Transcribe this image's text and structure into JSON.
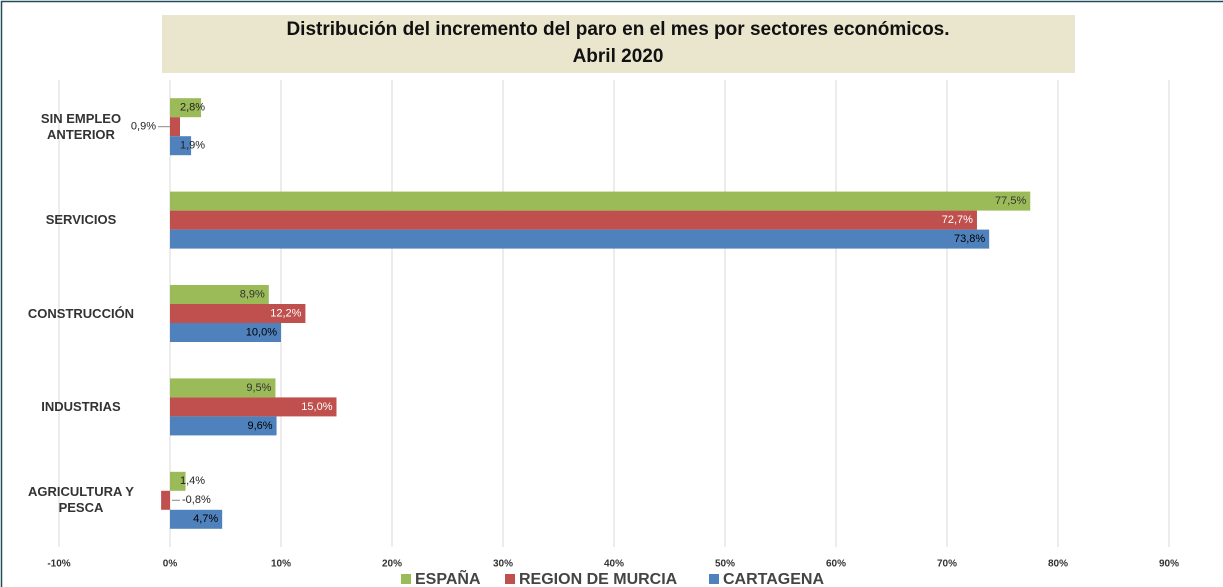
{
  "chart_data": {
    "type": "hbar",
    "title": [
      "Distribución del incremento del paro en el mes por sectores económicos.",
      "Abril 2020"
    ],
    "categories": [
      "SIN EMPLEO ANTERIOR",
      "SERVICIOS",
      "CONSTRUCCIÓN",
      "INDUSTRIAS",
      "AGRICULTURA Y PESCA"
    ],
    "series": [
      {
        "name": "ESPAÑA",
        "color": "#9bbb59",
        "values": [
          2.8,
          77.5,
          8.9,
          9.5,
          1.4
        ],
        "value_labels": [
          "2,8%",
          "77,5%",
          "8,9%",
          "9,5%",
          "1,4%"
        ]
      },
      {
        "name": "REGION DE MURCIA",
        "color": "#c0504d",
        "values": [
          0.9,
          72.7,
          12.2,
          15.0,
          -0.8
        ],
        "value_labels": [
          "0,9%",
          "72,7%",
          "12,2%",
          "15,0%",
          "-0,8%"
        ]
      },
      {
        "name": "CARTAGENA",
        "color": "#4f81bd",
        "values": [
          1.9,
          73.8,
          10.0,
          9.6,
          4.7
        ],
        "value_labels": [
          "1,9%",
          "73,8%",
          "10,0%",
          "9,6%",
          "4,7%"
        ]
      }
    ],
    "xlim": [
      -10,
      90
    ],
    "xticks": [
      {
        "value": -10,
        "label": "-10%"
      },
      {
        "value": 0,
        "label": "0%"
      },
      {
        "value": 10,
        "label": "10%"
      },
      {
        "value": 20,
        "label": "20%"
      },
      {
        "value": 30,
        "label": "30%"
      },
      {
        "value": 40,
        "label": "40%"
      },
      {
        "value": 50,
        "label": "50%"
      },
      {
        "value": 60,
        "label": "60%"
      },
      {
        "value": 70,
        "label": "70%"
      },
      {
        "value": 80,
        "label": "80%"
      },
      {
        "value": 90,
        "label": "90%"
      }
    ],
    "grid": true,
    "legend": "bottom"
  }
}
